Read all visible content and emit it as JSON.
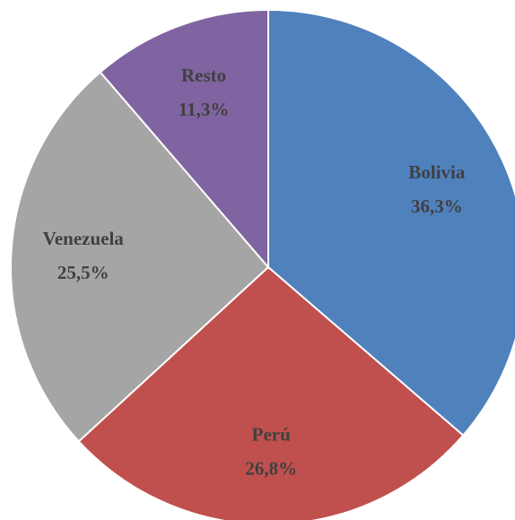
{
  "chart_data": {
    "type": "pie",
    "categories": [
      "Bolivia",
      "Perú",
      "Venezuela",
      "Resto"
    ],
    "values": [
      36.3,
      26.8,
      25.5,
      11.3
    ],
    "value_labels": [
      "36,3%",
      "26,8%",
      "25,5%",
      "11,3%"
    ],
    "colors": [
      "#4f81bd",
      "#c0504d",
      "#a5a5a5",
      "#8064a2"
    ]
  }
}
